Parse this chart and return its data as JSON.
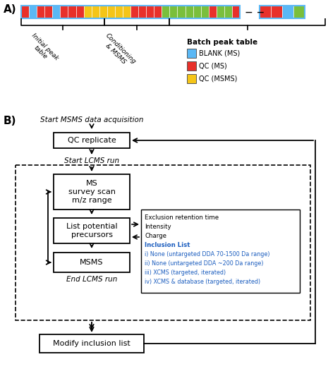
{
  "panel_A_label": "A)",
  "panel_B_label": "B)",
  "bar_sequence_main": [
    "red",
    "blue",
    "red",
    "red",
    "blue",
    "red",
    "red",
    "red",
    "yellow",
    "yellow",
    "yellow",
    "yellow",
    "yellow",
    "yellow",
    "red",
    "red",
    "red",
    "red",
    "green",
    "green",
    "green",
    "green",
    "green",
    "green",
    "red",
    "green",
    "green",
    "red"
  ],
  "bar_sequence_end": [
    "red",
    "red",
    "blue",
    "green"
  ],
  "bar_colors": {
    "blue": "#5BB8F5",
    "red": "#E8302A",
    "yellow": "#F5C518",
    "green": "#7ABF3C"
  },
  "legend_items": [
    {
      "label": "BLANK (MS)",
      "color": "#5BB8F5"
    },
    {
      "label": "QC (MS)",
      "color": "#E8302A"
    },
    {
      "label": "QC (MSMS)",
      "color": "#F5C518"
    }
  ],
  "batch_peak_table_label": "Batch peak table",
  "flowchart": {
    "start_text": "Start MSMS data acquisition",
    "qc_replicate_text": "QC replicate",
    "start_lcms_text": "Start LCMS run",
    "ms_survey_text": "MS\nsurvey scan\nm/z range",
    "list_precursors_text": "List potential\nprecursors",
    "msms_text": "MSMS",
    "end_lcms_text": "End LCMS run",
    "modify_text": "Modify inclusion list",
    "info_box_black_lines": [
      "Exclusion retention time",
      "Intensity",
      "Charge"
    ],
    "info_box_blue_label": "Inclusion List",
    "info_box_blue_lines": [
      "i) None (untargeted DDA 70-1500 Da range)",
      "ii) None (untargeted DDA ~200 Da range)",
      "iii) XCMS (targeted, iterated)",
      "iv) XCMS & database (targeted, iterated)"
    ]
  },
  "blue_text": "#1B5DBF",
  "bg": "#ffffff"
}
